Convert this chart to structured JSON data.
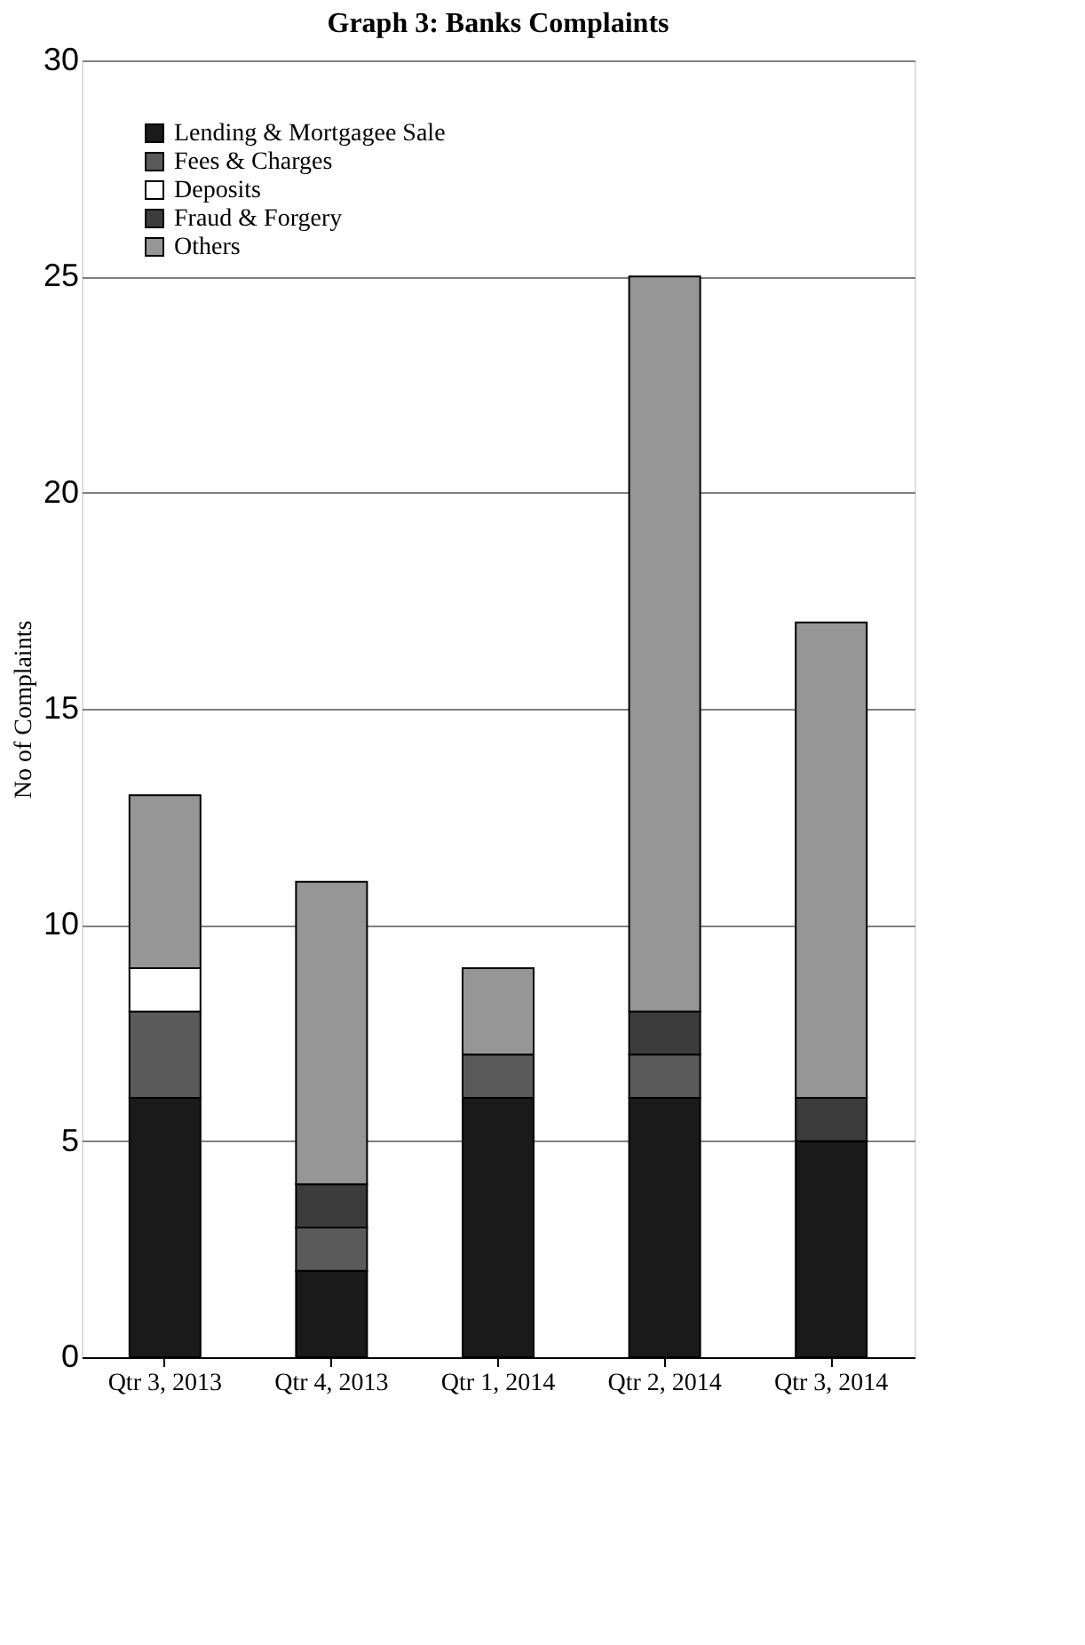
{
  "chart_data": {
    "type": "bar",
    "title": "Graph 3: Banks Complaints",
    "ylabel": "No of Complaints",
    "stacked": true,
    "categories": [
      "Qtr 3, 2013",
      "Qtr 4, 2013",
      "Qtr 1, 2014",
      "Qtr 2, 2014",
      "Qtr 3, 2014"
    ],
    "series": [
      {
        "name": "Lending & Mortgagee Sale",
        "color": "#1a1a1a",
        "values": [
          6,
          2,
          6,
          6,
          5
        ]
      },
      {
        "name": "Fees & Charges",
        "color": "#5a5a5a",
        "values": [
          2,
          1,
          1,
          1,
          0
        ]
      },
      {
        "name": "Deposits",
        "color": "#ffffff",
        "values": [
          1,
          0,
          0,
          0,
          0
        ]
      },
      {
        "name": "Fraud & Forgery",
        "color": "#3c3c3c",
        "values": [
          0,
          1,
          0,
          1,
          1
        ]
      },
      {
        "name": "Others",
        "color": "#969696",
        "values": [
          4,
          7,
          2,
          17,
          11
        ]
      }
    ],
    "ylim": [
      0,
      30
    ],
    "yticks": [
      0,
      5,
      10,
      15,
      20,
      25,
      30
    ],
    "grid": "y",
    "legend": "top left"
  }
}
